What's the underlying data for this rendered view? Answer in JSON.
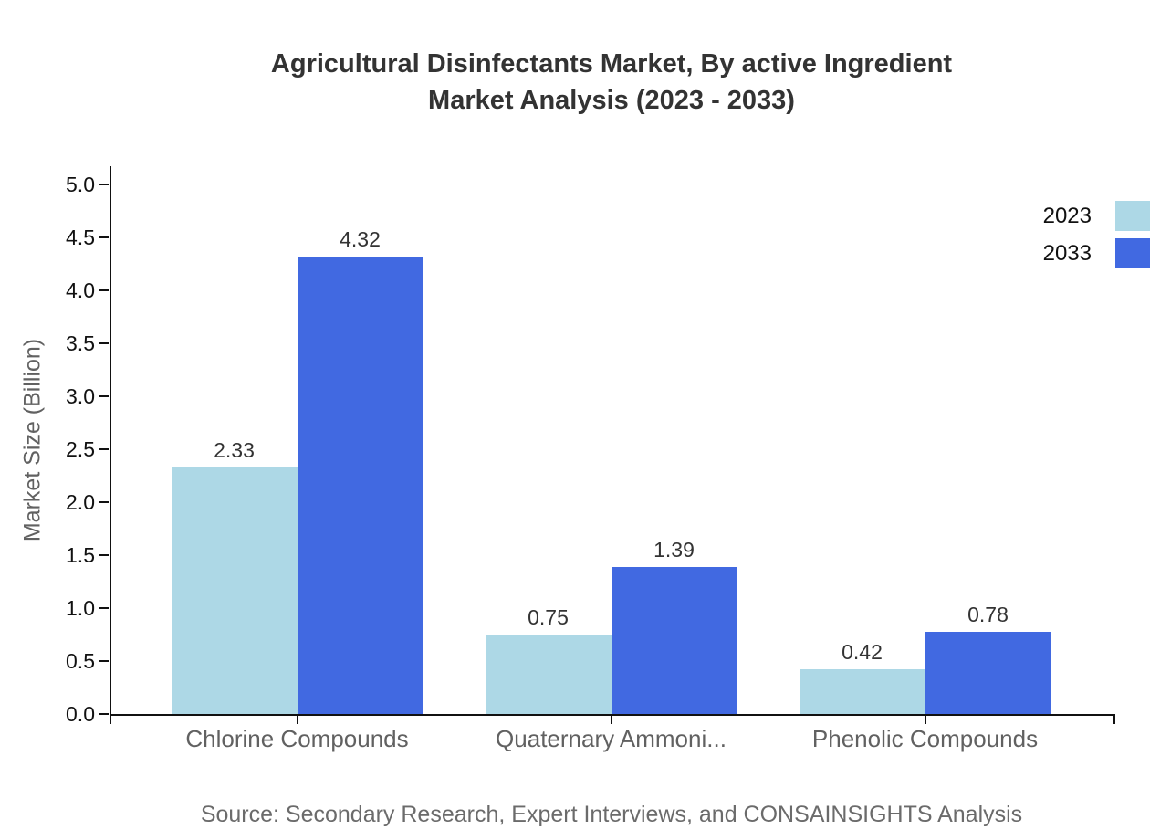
{
  "title": {
    "line1": "Agricultural Disinfectants Market, By active Ingredient",
    "line2": "Market Analysis (2023 - 2033)"
  },
  "source_note": "Source: Secondary Research, Expert Interviews, and CONSAINSIGHTS Analysis",
  "colors": {
    "series_2023": "#ADD8E6",
    "series_2033": "#4169E1",
    "axis": "#111111",
    "title_text": "#333333",
    "muted_text": "#616161",
    "source_text": "#6B6B6B"
  },
  "chart_data": {
    "type": "bar",
    "title": "Agricultural Disinfectants Market, By active Ingredient Market Analysis (2023 - 2033)",
    "categories": [
      "Chlorine Compounds",
      "Quaternary Ammoni...",
      "Phenolic Compounds"
    ],
    "series": [
      {
        "name": "2023",
        "color": "#ADD8E6",
        "values": [
          2.33,
          0.75,
          0.42
        ]
      },
      {
        "name": "2033",
        "color": "#4169E1",
        "values": [
          4.32,
          1.39,
          0.78
        ]
      }
    ],
    "xlabel": "",
    "ylabel": "Market Size (Billion)",
    "ylim": [
      0,
      5
    ],
    "yticks": [
      "0.0",
      "0.5",
      "1.0",
      "1.5",
      "2.0",
      "2.5",
      "3.0",
      "3.5",
      "4.0",
      "4.5",
      "5.0"
    ],
    "grid": false,
    "bar_value_labels": true,
    "value_label_decimals": 2,
    "legend_position": "top-right"
  }
}
